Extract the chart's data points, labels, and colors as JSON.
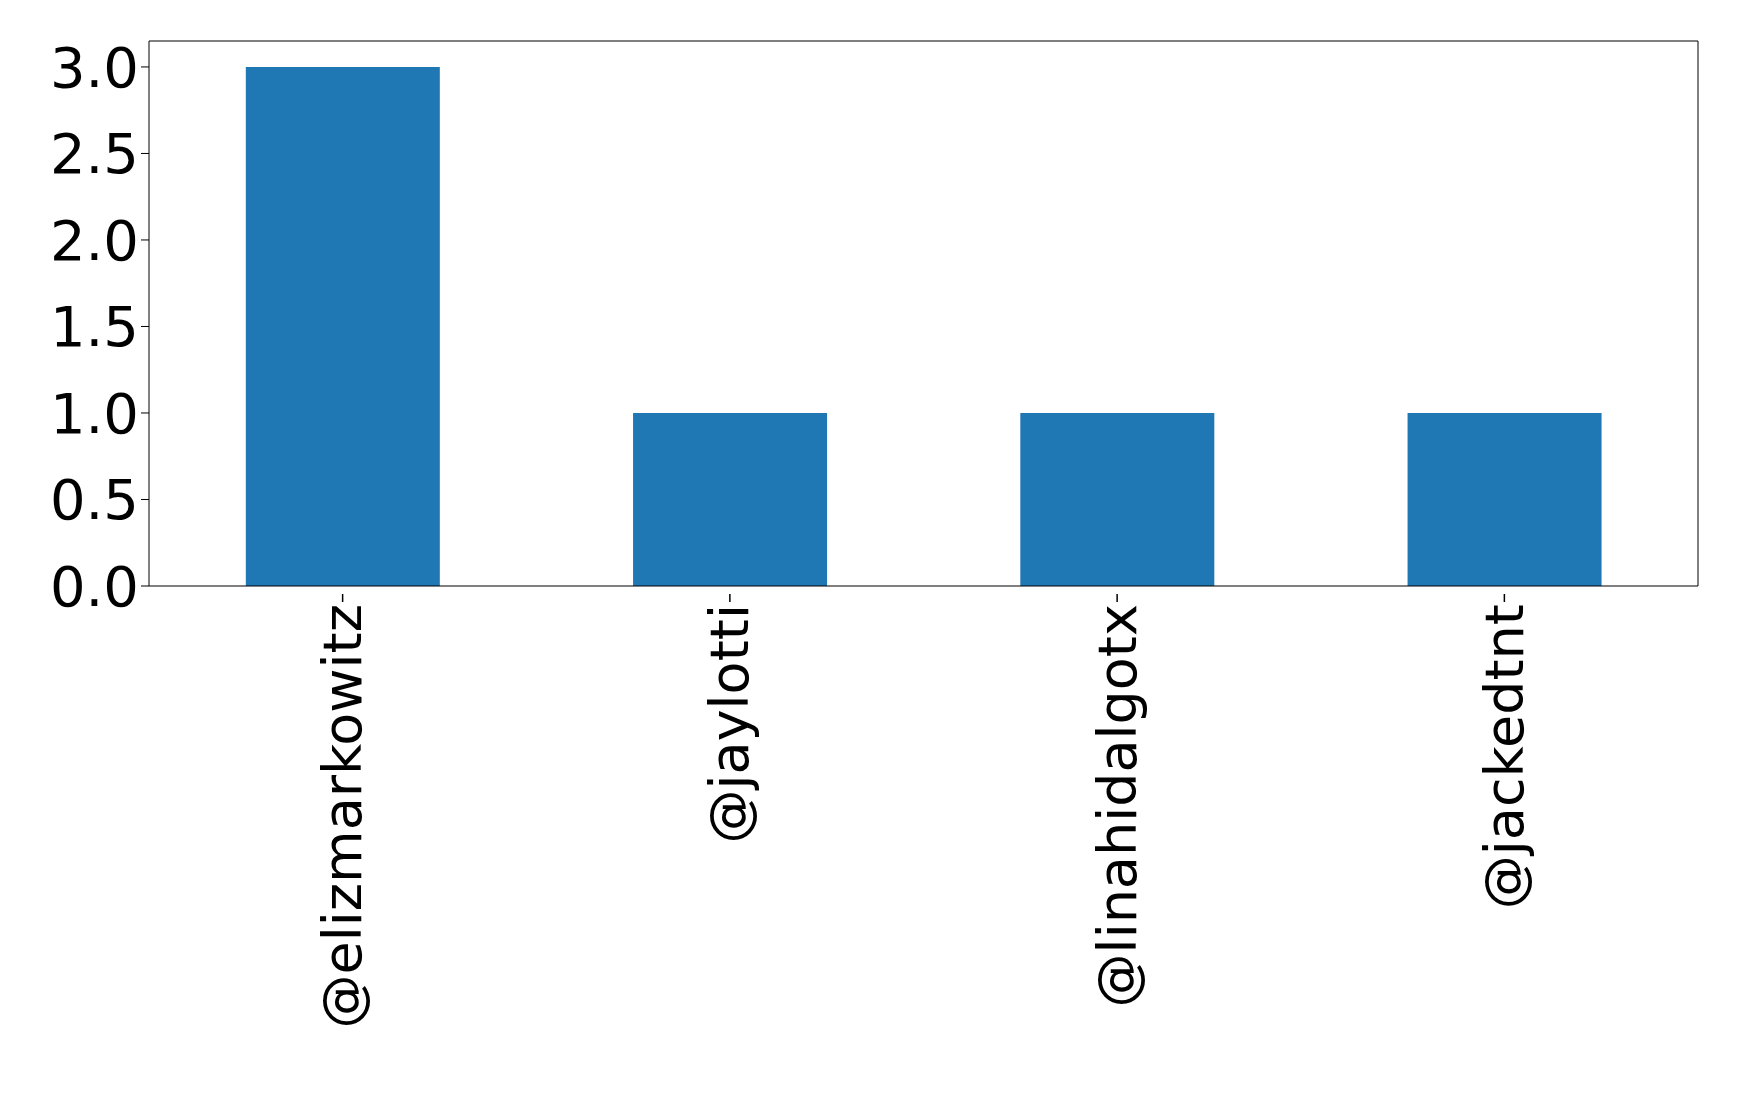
{
  "chart_data": {
    "type": "bar",
    "categories": [
      "@elizmarkowitz",
      "@jaylotti",
      "@linahidalgotx",
      "@jackedtnt"
    ],
    "values": [
      3,
      1,
      1,
      1
    ],
    "color": "#1f77b4",
    "ylim": [
      0,
      3.15
    ],
    "yticks": [
      {
        "value": 0,
        "label": "0.0"
      },
      {
        "value": 0.5,
        "label": "0.5"
      },
      {
        "value": 1,
        "label": "1.0"
      },
      {
        "value": 1.5,
        "label": "1.5"
      },
      {
        "value": 2,
        "label": "2.0"
      },
      {
        "value": 2.5,
        "label": "2.5"
      },
      {
        "value": 3,
        "label": "3.0"
      }
    ],
    "grid": false
  }
}
